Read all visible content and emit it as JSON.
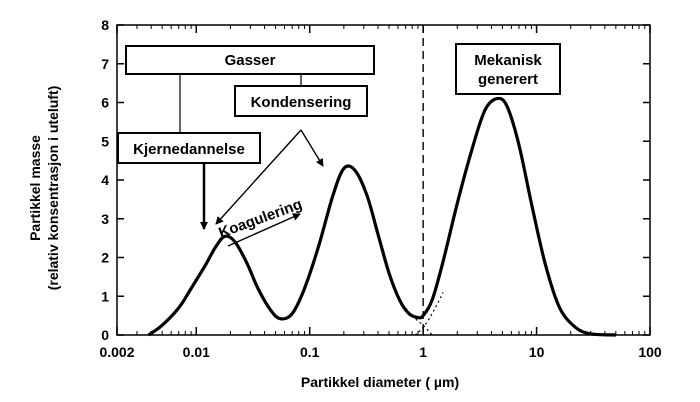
{
  "chart_data": {
    "type": "line",
    "xscale": "log",
    "xlabel": "Partikkel diameter ( µm)",
    "ylabel_line1": "Partikkel masse",
    "ylabel_line2": "(relativ konsentrasjon i  uteluft)",
    "xlim": [
      0.002,
      100
    ],
    "ylim": [
      0,
      8
    ],
    "x_ticks": [
      {
        "value": 0.002,
        "label": "0.002"
      },
      {
        "value": 0.01,
        "label": "0.01"
      },
      {
        "value": 0.1,
        "label": "0.1"
      },
      {
        "value": 1,
        "label": "1"
      },
      {
        "value": 10,
        "label": "10"
      },
      {
        "value": 100,
        "label": "100"
      }
    ],
    "y_ticks": [
      {
        "value": 0,
        "label": "0"
      },
      {
        "value": 1,
        "label": "1"
      },
      {
        "value": 2,
        "label": "2"
      },
      {
        "value": 3,
        "label": "3"
      },
      {
        "value": 4,
        "label": "4"
      },
      {
        "value": 5,
        "label": "5"
      },
      {
        "value": 6,
        "label": "6"
      },
      {
        "value": 7,
        "label": "7"
      },
      {
        "value": 8,
        "label": "8"
      }
    ],
    "series": [
      {
        "x": [
          0.0038,
          0.005,
          0.007,
          0.009,
          0.012,
          0.015,
          0.018,
          0.022,
          0.028,
          0.035,
          0.045,
          0.055,
          0.07,
          0.09,
          0.12,
          0.16,
          0.2,
          0.25,
          0.32,
          0.4,
          0.5,
          0.62,
          0.75,
          0.9,
          1.0,
          1.2,
          1.5,
          2.0,
          2.7,
          3.5,
          4.5,
          5.5,
          7.0,
          9.0,
          12,
          16,
          22,
          30,
          50
        ],
        "values": [
          0.0,
          0.25,
          0.7,
          1.2,
          1.8,
          2.3,
          2.55,
          2.4,
          1.85,
          1.2,
          0.65,
          0.42,
          0.55,
          1.2,
          2.3,
          3.6,
          4.3,
          4.25,
          3.6,
          2.6,
          1.6,
          0.9,
          0.55,
          0.45,
          0.5,
          0.9,
          1.9,
          3.4,
          4.8,
          5.8,
          6.1,
          5.9,
          4.9,
          3.4,
          1.8,
          0.7,
          0.2,
          0.03,
          0.0
        ],
        "color": "#000000"
      }
    ],
    "dashed_vline": {
      "x": 1
    },
    "dotted_tails": [
      {
        "x": [
          0.62,
          0.8,
          1.0,
          1.2
        ],
        "values": [
          0.9,
          0.5,
          0.25,
          0.0
        ]
      },
      {
        "x": [
          0.85,
          1.0,
          1.2,
          1.5
        ],
        "values": [
          0.0,
          0.2,
          0.55,
          1.1
        ]
      }
    ],
    "annotations": [
      {
        "key": "gasser",
        "text": "Gasser"
      },
      {
        "key": "kondensering",
        "text": "Kondensering"
      },
      {
        "key": "kjernedannelse",
        "text": "Kjernedannelse"
      },
      {
        "key": "mekanisk",
        "lines": [
          "Mekanisk",
          "generert"
        ]
      },
      {
        "key": "koagulering",
        "text": "Koagulering"
      }
    ]
  }
}
